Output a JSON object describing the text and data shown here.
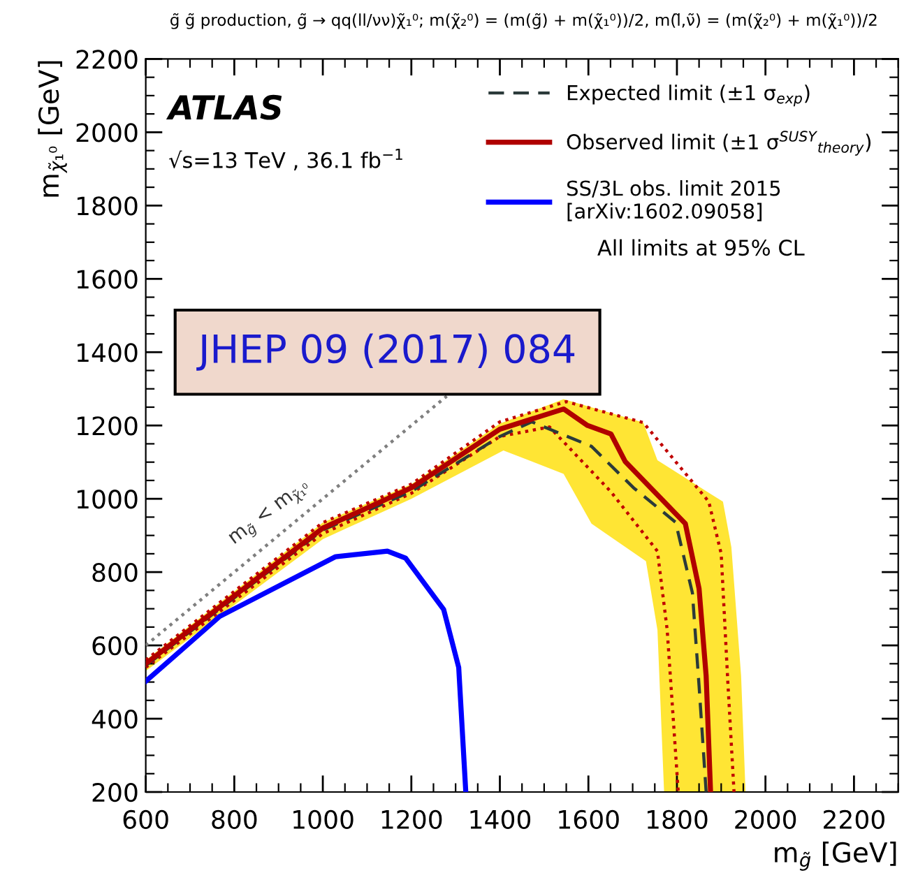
{
  "chart_data": {
    "type": "line",
    "title": "g̃ g̃ production, g̃ → qq(ll/νν)χ̃₁⁰; m(χ̃₂⁰) = (m(g̃) + m(χ̃₁⁰))/2, m(l̃,ν̃) = (m(χ̃₂⁰) + m(χ̃₁⁰))/2",
    "xlabel": "m$_{g̃}$ [GeV]",
    "ylabel": "m$_{χ̃₁⁰}$ [GeV]",
    "xlim": [
      600,
      2300
    ],
    "ylim": [
      200,
      2200
    ],
    "xticks": [
      600,
      800,
      1000,
      1200,
      1400,
      1600,
      1800,
      2000,
      2200
    ],
    "yticks": [
      200,
      400,
      600,
      800,
      1000,
      1200,
      1400,
      1600,
      1800,
      2000,
      2200
    ],
    "grid": false,
    "legend": "top right",
    "series": [
      {
        "type": "area",
        "color": "#ffe534",
        "x": [
          600,
          1000,
          1200,
          1400,
          1544,
          1724,
          1756,
          1904,
          1923,
          1945,
          1955,
          1771,
          1756,
          1730,
          1607,
          1544,
          1408,
          1200,
          1000,
          600
        ],
        "values": [
          560,
          935,
          1040,
          1205,
          1272,
          1208,
          1105,
          992,
          868,
          517,
          200,
          200,
          642,
          830,
          932,
          1068,
          1132,
          1000,
          890,
          530
        ]
      },
      {
        "color": "#7f7f7f",
        "line_style": "dotted",
        "x": [
          600,
          1280
        ],
        "values": [
          600,
          1280
        ]
      },
      {
        "color": "#c00000",
        "line_style": "dotted",
        "x": [
          600,
          1000,
          1200,
          1400,
          1550,
          1724,
          1872,
          1900,
          1915,
          1929
        ],
        "values": [
          560,
          935,
          1040,
          1210,
          1265,
          1208,
          992,
          850,
          500,
          200
        ]
      },
      {
        "color": "#c00000",
        "line_style": "dotted",
        "x": [
          600,
          1000,
          1200,
          1400,
          1512,
          1651,
          1756,
          1778,
          1803
        ],
        "values": [
          540,
          905,
          1015,
          1170,
          1196,
          1019,
          857,
          642,
          200
        ]
      },
      {
        "name": "Expected limit (±1 σ$_{exp}$)",
        "color": "#2b3a3a",
        "line_style": "dashed",
        "x": [
          600,
          1000,
          1200,
          1400,
          1472,
          1607,
          1702,
          1797,
          1835,
          1850,
          1866
        ],
        "values": [
          545,
          915,
          1020,
          1170,
          1210,
          1143,
          1030,
          936,
          743,
          490,
          200
        ]
      },
      {
        "name": "Observed limit (±1 σ$^{SUSY}$$_{theory}$)",
        "color": "#b00000",
        "line_style": "solid",
        "x": [
          600,
          1000,
          1200,
          1400,
          1544,
          1598,
          1651,
          1683,
          1819,
          1850,
          1866,
          1876
        ],
        "values": [
          550,
          920,
          1030,
          1190,
          1245,
          1200,
          1177,
          1102,
          932,
          755,
          517,
          200
        ]
      },
      {
        "name": "SS/3L obs. limit 2015\n[arXiv:1602.09058]",
        "color": "#0000ff",
        "line_style": "solid",
        "x": [
          600,
          767,
          1029,
          1146,
          1187,
          1273,
          1307,
          1323
        ],
        "values": [
          502,
          679,
          842,
          857,
          838,
          698,
          540,
          200
        ]
      }
    ],
    "annotations": [
      "ATLAS",
      "√s=13 TeV , 36.1 fb$^{−1}$",
      "All limits at 95% CL",
      "JHEP 09 (2017) 084",
      "m$_{g̃}$ < m$_{χ̃₁⁰}$"
    ]
  }
}
